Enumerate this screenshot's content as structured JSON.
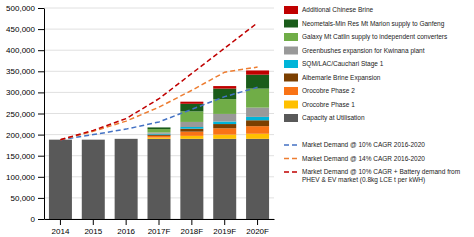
{
  "chart_data": {
    "type": "bar",
    "stacked": true,
    "grid": true,
    "categories": [
      "2014",
      "2015",
      "2016",
      "2017F",
      "2018F",
      "2019F",
      "2020F"
    ],
    "series": [
      {
        "name": "Capacity at Utilisation",
        "color": "#595959",
        "values": [
          188000,
          188000,
          190000,
          190000,
          190000,
          190000,
          190000
        ]
      },
      {
        "name": "Orocobre Phase 1",
        "color": "#ffc000",
        "values": [
          0,
          0,
          0,
          3000,
          7000,
          10000,
          12000
        ]
      },
      {
        "name": "Orocobre Phase 2",
        "color": "#f97316",
        "values": [
          0,
          0,
          0,
          4000,
          10000,
          15000,
          18000
        ]
      },
      {
        "name": "Albemarle Brine Expansion",
        "color": "#7B3F00",
        "values": [
          0,
          0,
          0,
          3000,
          7000,
          10000,
          14000
        ]
      },
      {
        "name": "SQM/LAC/Cauchari Stage 1",
        "color": "#00b4d8",
        "values": [
          0,
          0,
          0,
          2000,
          4000,
          6000,
          8000
        ]
      },
      {
        "name": "Greenbushes expansion for Kwinana plant",
        "color": "#999999",
        "values": [
          0,
          0,
          0,
          3000,
          12000,
          18000,
          22000
        ]
      },
      {
        "name": "Galaxy Mt Catlin supply to independent converters",
        "color": "#70ad47",
        "values": [
          0,
          0,
          0,
          8000,
          25000,
          35000,
          45000
        ]
      },
      {
        "name": "Neometals-Min Res Mt Marion supply to Ganfeng",
        "color": "#1a5c1a",
        "values": [
          0,
          0,
          0,
          4000,
          18000,
          25000,
          33000
        ]
      },
      {
        "name": "Additional Chinese Brine",
        "color": "#c00000",
        "values": [
          0,
          0,
          0,
          0,
          5000,
          6000,
          10000
        ]
      },
      {
        "name": "Market Demand @ 10% CAGR 2016-2020",
        "type": "line",
        "line_style": "dashed",
        "color": "#4472c4",
        "values": [
          188000,
          200000,
          213000,
          230000,
          260000,
          290000,
          312000
        ]
      },
      {
        "name": "Market Demand @ 14% CAGR 2016-2020",
        "type": "line",
        "line_style": "dashed",
        "color": "#ed7d31",
        "values": [
          188000,
          208000,
          232000,
          265000,
          305000,
          348000,
          360000
        ]
      },
      {
        "name": "Market Demand @ 10% CAGR + Battery demand from\nPHEV & EV market (0.8kg LCE t per kWH)",
        "type": "line",
        "line_style": "dashed",
        "color": "#c00000",
        "values": [
          188000,
          210000,
          238000,
          285000,
          345000,
          405000,
          465000
        ]
      }
    ],
    "ylim": [
      0,
      500000
    ],
    "yticks": [
      0,
      {
        "value": 50000,
        "label": "50,000"
      },
      {
        "value": 100000,
        "label": "100,000"
      },
      {
        "value": 150000,
        "label": "150,000"
      },
      {
        "value": 200000,
        "label": "200,000"
      },
      {
        "value": 250000,
        "label": "250,000"
      },
      {
        "value": 300000,
        "label": "300,000"
      },
      {
        "value": 350000,
        "label": "350,000"
      },
      {
        "value": 400000,
        "label": "400,000"
      },
      {
        "value": 450000,
        "label": "450,000"
      },
      {
        "value": 500000,
        "label": "500,000"
      }
    ]
  }
}
